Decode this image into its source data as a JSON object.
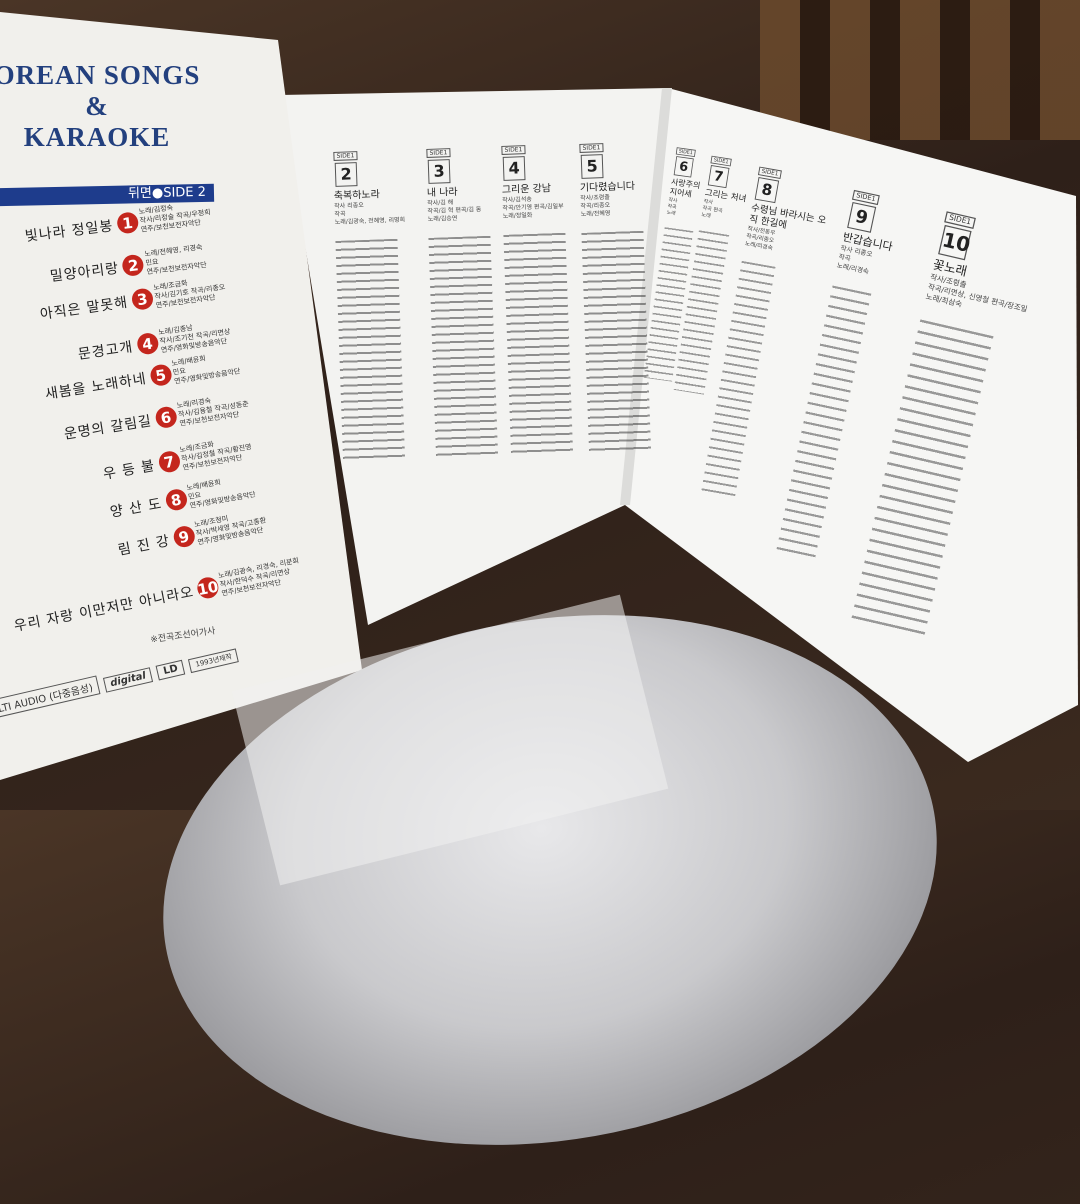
{
  "left_panel": {
    "title_line1": "OREAN SONGS",
    "title_line2": "&",
    "title_line3": "KARAOKE",
    "side_label": "뒤면●SIDE 2",
    "accent_color": "#1e3c8c",
    "number_color": "#c4261d",
    "songs": [
      {
        "n": "1",
        "title": "빛나라 정일봉",
        "c1": "노래/김정숙",
        "c2": "작사/리정술 작곡/우정희",
        "c3": "연주/보천보전자악단"
      },
      {
        "n": "2",
        "title": "밀양아리랑",
        "c1": "노래/전혜영, 리경숙",
        "c2": "민요",
        "c3": "연주/보천보전자악단"
      },
      {
        "n": "3",
        "title": "아직은 말못해",
        "c1": "노래/조금화",
        "c2": "작사/김기호 작곡/리종오",
        "c3": "연주/보천보전자악단"
      },
      {
        "n": "4",
        "title": "문경고개",
        "c1": "노래/김종남",
        "c2": "작사/조기천 작곡/리면상",
        "c3": "연주/영화및방송음악단"
      },
      {
        "n": "5",
        "title": "새봄을 노래하네",
        "c1": "노래/배윤희",
        "c2": "민요",
        "c3": "연주/영화및방송음악단"
      },
      {
        "n": "6",
        "title": "운명의 갈림길",
        "c1": "노래/리경숙",
        "c2": "작사/김용철 작곡/성동춘",
        "c3": "연주/보천보전자악단"
      },
      {
        "n": "7",
        "title": "우 등 불",
        "c1": "노래/조금화",
        "c2": "작사/김정철 작곡/황진영",
        "c3": "연주/보천보전자악단"
      },
      {
        "n": "8",
        "title": "양 산 도",
        "c1": "노래/배윤희",
        "c2": "민요",
        "c3": "연주/영화및방송음악단"
      },
      {
        "n": "9",
        "title": "림 진 강",
        "c1": "노래/조청미",
        "c2": "작사/박세영 작곡/고종환",
        "c3": "연주/영화및방송음악단"
      },
      {
        "n": "10",
        "title": "우리 자랑 이만저만 아니라오",
        "c1": "노래/김광숙, 리경숙, 리분희",
        "c2": "작사/한덕수 작곡/리면상",
        "c3": "연주/보천보전자악단"
      }
    ],
    "footnote": "※전곡조선어가사",
    "audio_label": "LTI  AUDIO (다중음성)",
    "digital_logo": "digital",
    "ld_logo": "LD",
    "year_label": "1993년제작"
  },
  "inner_tracks": [
    {
      "side": "SIDE1",
      "n": "2",
      "title": "축복하노라",
      "credits": [
        "작사  리종오",
        "작곡",
        "노래/김광숙, 전혜영, 리명희"
      ]
    },
    {
      "side": "SIDE1",
      "n": "3",
      "title": "내 나라",
      "credits": [
        "작사/김  해",
        "작곡/김  혁 편곡/김  동",
        "노래/김승연"
      ]
    },
    {
      "side": "SIDE1",
      "n": "4",
      "title": "그리운 강남",
      "credits": [
        "작사/김석송",
        "작곡/안기영 편곡/김일부",
        "노래/정일화"
      ]
    },
    {
      "side": "SIDE1",
      "n": "5",
      "title": "기다렸습니다",
      "credits": [
        "작사/조령출",
        "작곡/리종오",
        "노래/전혜영"
      ]
    },
    {
      "side": "SIDE1",
      "n": "6",
      "title": "사랑주의 지어세",
      "credits": [
        "작사",
        "작곡",
        "노래"
      ]
    },
    {
      "side": "SIDE1",
      "n": "7",
      "title": "그리는 처녀",
      "credits": [
        "작사",
        "작곡 편곡",
        "노래"
      ]
    },
    {
      "side": "SIDE1",
      "n": "8",
      "title": "수령님 바라시는 오직 한길에",
      "credits": [
        "작사/전동우",
        "작곡/리종오",
        "노래/리경숙"
      ]
    },
    {
      "side": "SIDE1",
      "n": "9",
      "title": "반갑습니다",
      "credits": [
        "작사  리종오",
        "작곡",
        "노래/리경숙"
      ]
    },
    {
      "side": "SIDE1",
      "n": "10",
      "title": "꽃노래",
      "credits": [
        "작사/조령출",
        "작곡/리면상, 신영철 편곡/장조일",
        "노래/최삼숙"
      ]
    }
  ]
}
